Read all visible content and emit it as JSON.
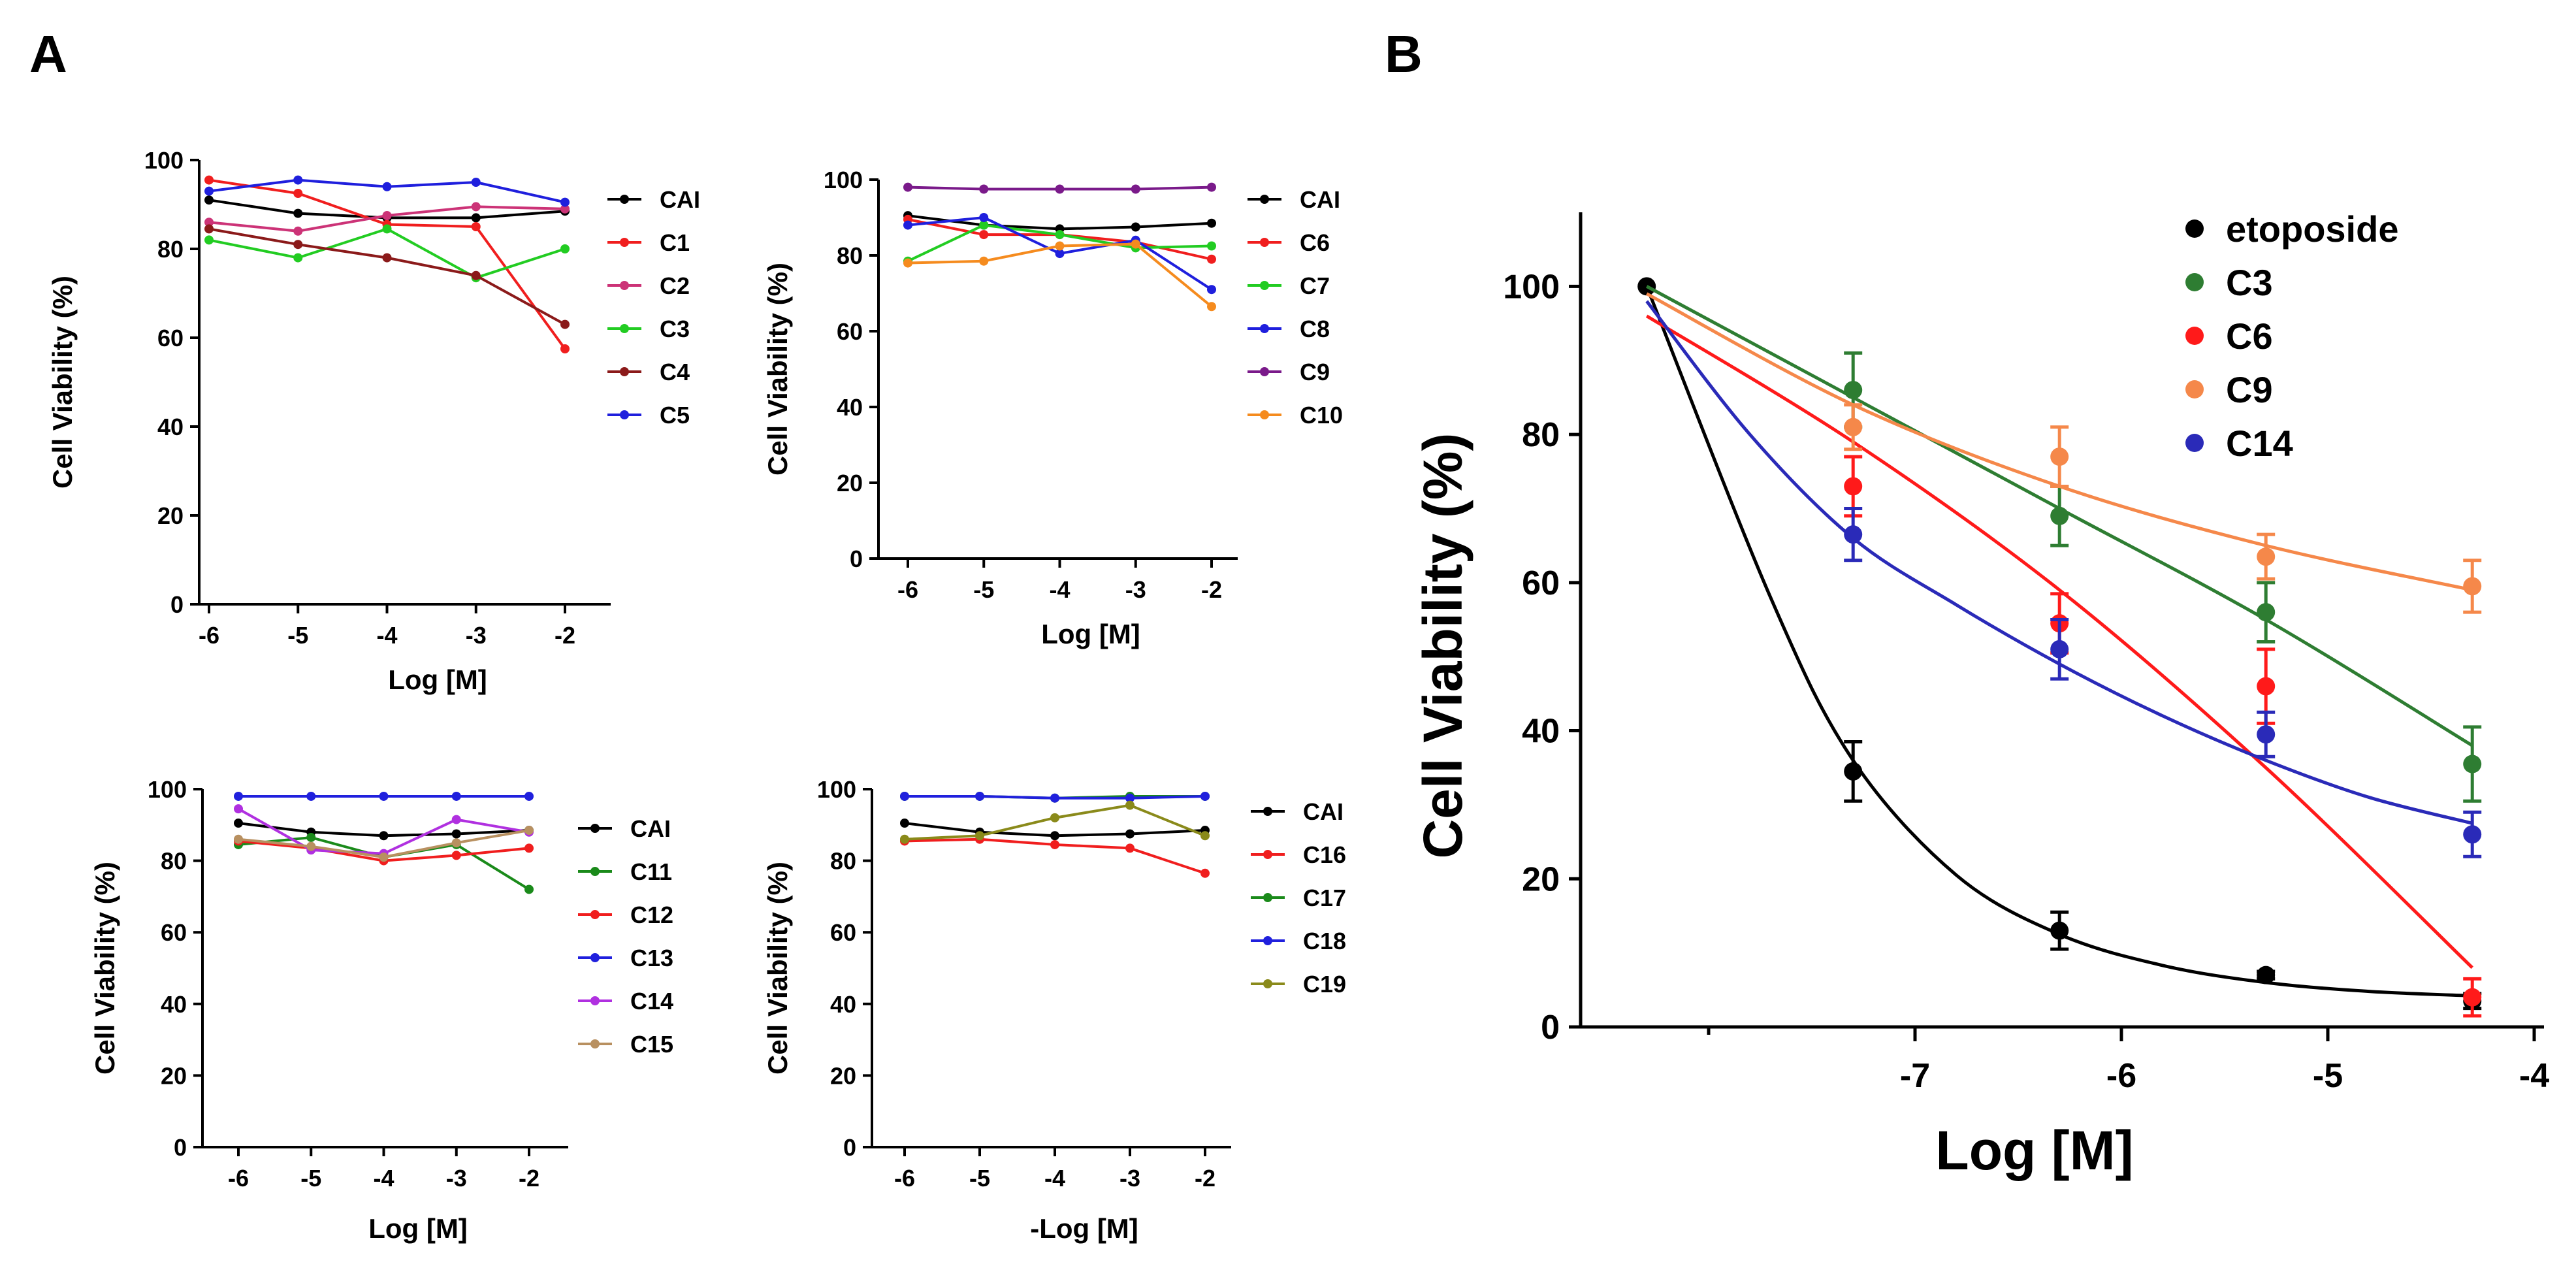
{
  "panel_labels": [
    "A",
    "B"
  ],
  "colors": {
    "CAI": "#000000",
    "C1": "#f01e1e",
    "C2": "#cc3377",
    "C3": "#22cc22",
    "C4": "#8b1a1a",
    "C5": "#1f1fdd",
    "C6": "#f01e1e",
    "C7": "#22cc22",
    "C8": "#1f1fdd",
    "C9": "#7a1a8a",
    "C10": "#f58b1e",
    "C11": "#1a8a1a",
    "C12": "#f01e1e",
    "C13": "#2020dd",
    "C14": "#b030e0",
    "C15": "#b89060",
    "C16": "#f01e1e",
    "C17": "#1a8a1a",
    "C18": "#2020dd",
    "C19": "#8a8a1a",
    "B_etoposide": "#000000",
    "B_C3": "#2e7d32",
    "B_C6": "#ff1a1a",
    "B_C9": "#f5884a",
    "B_C14": "#2a2ab8"
  },
  "chart_data": [
    {
      "type": "line",
      "panel": "A1",
      "xlabel": "Log [M]",
      "ylabel": "Cell Viability (%)",
      "x": [
        -6,
        -5,
        -4,
        -3,
        -2
      ],
      "xticks": [
        "-6",
        "-5",
        "-4",
        "-3",
        "-2"
      ],
      "yticks": [
        "0",
        "20",
        "40",
        "60",
        "80",
        "100"
      ],
      "ylim": [
        0,
        100
      ],
      "series": [
        {
          "name": "CAI",
          "values": [
            91,
            88,
            87,
            87,
            88.5
          ]
        },
        {
          "name": "C1",
          "values": [
            95.5,
            92.5,
            85.5,
            85,
            57.5
          ]
        },
        {
          "name": "C2",
          "values": [
            86,
            84,
            87.5,
            89.5,
            89
          ]
        },
        {
          "name": "C3",
          "values": [
            82,
            78,
            84.5,
            73.5,
            80
          ]
        },
        {
          "name": "C4",
          "values": [
            84.5,
            81,
            78,
            74,
            63
          ]
        },
        {
          "name": "C5",
          "values": [
            93,
            95.5,
            94,
            95,
            90.5
          ]
        }
      ]
    },
    {
      "type": "line",
      "panel": "A2",
      "xlabel": "Log [M]",
      "ylabel": "Cell Viability (%)",
      "x": [
        -6,
        -5,
        -4,
        -3,
        -2
      ],
      "xticks": [
        "-6",
        "-5",
        "-4",
        "-3",
        "-2"
      ],
      "yticks": [
        "0",
        "20",
        "40",
        "60",
        "80",
        "100"
      ],
      "ylim": [
        0,
        100
      ],
      "series": [
        {
          "name": "CAI",
          "values": [
            90.5,
            88,
            87,
            87.5,
            88.5
          ]
        },
        {
          "name": "C6",
          "values": [
            89.5,
            85.5,
            85.5,
            83.5,
            79
          ]
        },
        {
          "name": "C7",
          "values": [
            78.5,
            88,
            85.5,
            82,
            82.5
          ]
        },
        {
          "name": "C8",
          "values": [
            88,
            90,
            80.5,
            84,
            71
          ]
        },
        {
          "name": "C9",
          "values": [
            98,
            97.5,
            97.5,
            97.5,
            98
          ]
        },
        {
          "name": "C10",
          "values": [
            78,
            78.5,
            82.5,
            83,
            66.5
          ]
        }
      ]
    },
    {
      "type": "line",
      "panel": "A3",
      "xlabel": "Log [M]",
      "ylabel": "Cell Viability  (%)",
      "x": [
        -6,
        -5,
        -4,
        -3,
        -2
      ],
      "xticks": [
        "-6",
        "-5",
        "-4",
        "-3",
        "-2"
      ],
      "yticks": [
        "0",
        "20",
        "40",
        "60",
        "80",
        "100"
      ],
      "ylim": [
        0,
        100
      ],
      "series": [
        {
          "name": "CAI",
          "values": [
            90.5,
            88,
            87,
            87.5,
            88.5
          ]
        },
        {
          "name": "C11",
          "values": [
            84.5,
            86.5,
            81,
            84.5,
            72
          ]
        },
        {
          "name": "C12",
          "values": [
            85.5,
            83.5,
            80,
            81.5,
            83.5
          ]
        },
        {
          "name": "C13",
          "values": [
            98,
            98,
            98,
            98,
            98
          ]
        },
        {
          "name": "C14",
          "values": [
            94.5,
            83,
            82,
            91.5,
            88
          ]
        },
        {
          "name": "C15",
          "values": [
            86,
            84,
            81,
            85,
            88.5
          ]
        }
      ]
    },
    {
      "type": "line",
      "panel": "A4",
      "xlabel": "-Log [M]",
      "ylabel": "Cell Viability  (%)",
      "x": [
        -6,
        -5,
        -4,
        -3,
        -2
      ],
      "xticks": [
        "-6",
        "-5",
        "-4",
        "-3",
        "-2"
      ],
      "yticks": [
        "0",
        "20",
        "40",
        "60",
        "80",
        "100"
      ],
      "ylim": [
        0,
        100
      ],
      "series": [
        {
          "name": "CAI",
          "values": [
            90.5,
            88,
            87,
            87.5,
            88.5
          ]
        },
        {
          "name": "C16",
          "values": [
            85.5,
            86,
            84.5,
            83.5,
            76.5
          ]
        },
        {
          "name": "C17",
          "values": [
            98,
            98,
            97.5,
            98,
            98
          ]
        },
        {
          "name": "C18",
          "values": [
            98,
            98,
            97.5,
            97.5,
            98
          ]
        },
        {
          "name": "C19",
          "values": [
            86,
            87,
            92,
            95.5,
            87
          ]
        }
      ]
    },
    {
      "type": "scatter",
      "panel": "B",
      "xlabel": "Log [M]",
      "ylabel": "Cell Viability  (%)",
      "xlim": [
        -8.5,
        -4
      ],
      "ylim": [
        0,
        110
      ],
      "xticks": [
        "-7",
        "-6",
        "-5",
        "-4"
      ],
      "xtick_values": [
        -7,
        -6,
        -5,
        -4
      ],
      "yticks": [
        "0",
        "20",
        "40",
        "60",
        "80",
        "100"
      ],
      "series": [
        {
          "name": "etoposide",
          "colorKey": "B_etoposide",
          "x": [
            -8.3,
            -7.3,
            -6.3,
            -5.3,
            -4.3
          ],
          "values": [
            100,
            34.5,
            13,
            7,
            3.5
          ],
          "errors": [
            0,
            4,
            2.5,
            0.5,
            1
          ],
          "fit": [
            [
              -8.3,
              100
            ],
            [
              -7.7,
              58
            ],
            [
              -7.3,
              36
            ],
            [
              -6.8,
              20.5
            ],
            [
              -6.3,
              12.5
            ],
            [
              -5.8,
              8.3
            ],
            [
              -5.3,
              6.0
            ],
            [
              -4.8,
              4.8
            ],
            [
              -4.3,
              4.2
            ]
          ]
        },
        {
          "name": "C3",
          "colorKey": "B_C3",
          "x": [
            -7.3,
            -6.3,
            -5.3,
            -4.3
          ],
          "values": [
            86,
            69,
            56,
            35.5
          ],
          "errors": [
            5,
            4,
            4,
            5
          ],
          "fit": [
            [
              -8.3,
              100
            ],
            [
              -7.3,
              85
            ],
            [
              -6.3,
              70
            ],
            [
              -5.3,
              55
            ],
            [
              -4.3,
              38
            ]
          ]
        },
        {
          "name": "C6",
          "colorKey": "B_C6",
          "x": [
            -7.3,
            -6.3,
            -5.3,
            -4.3
          ],
          "values": [
            73,
            54.5,
            46,
            4
          ],
          "errors": [
            4,
            4,
            5,
            2.5
          ],
          "fit": [
            [
              -8.3,
              96
            ],
            [
              -7.3,
              79
            ],
            [
              -6.3,
              59
            ],
            [
              -5.3,
              35
            ],
            [
              -4.3,
              8
            ]
          ]
        },
        {
          "name": "C9",
          "colorKey": "B_C9",
          "x": [
            -7.3,
            -6.3,
            -5.3,
            -4.3
          ],
          "values": [
            81,
            77,
            63.5,
            59.5
          ],
          "errors": [
            3,
            4,
            3,
            3.5
          ],
          "fit": [
            [
              -8.3,
              99
            ],
            [
              -7.3,
              84
            ],
            [
              -6.3,
              73
            ],
            [
              -5.3,
              65
            ],
            [
              -4.3,
              59
            ]
          ]
        },
        {
          "name": "C14",
          "colorKey": "B_C14",
          "x": [
            -7.3,
            -6.3,
            -5.3,
            -4.3
          ],
          "values": [
            66.5,
            51,
            39.5,
            26
          ],
          "errors": [
            3.5,
            4,
            3,
            3
          ],
          "fit": [
            [
              -8.3,
              98
            ],
            [
              -7.8,
              80
            ],
            [
              -7.3,
              66
            ],
            [
              -6.8,
              57
            ],
            [
              -6.3,
              49
            ],
            [
              -5.8,
              42
            ],
            [
              -5.3,
              36
            ],
            [
              -4.8,
              31
            ],
            [
              -4.3,
              27.5
            ]
          ]
        }
      ]
    }
  ]
}
